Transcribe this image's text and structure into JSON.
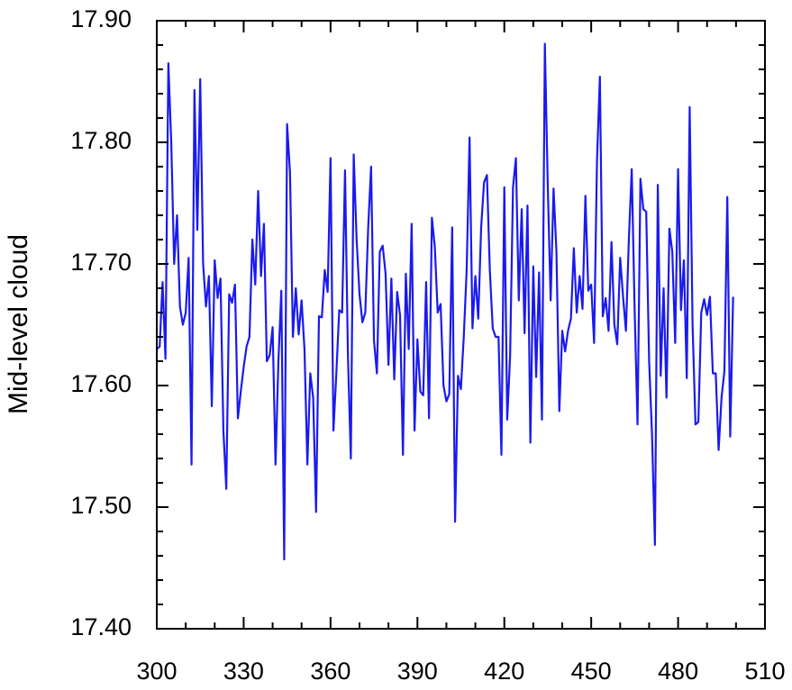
{
  "chart_data": {
    "type": "line",
    "y_label": "Mid-level cloud",
    "x": [
      300,
      301,
      302,
      303,
      304,
      305,
      306,
      307,
      308,
      309,
      310,
      311,
      312,
      313,
      314,
      315,
      316,
      317,
      318,
      319,
      320,
      321,
      322,
      323,
      324,
      325,
      326,
      327,
      328,
      329,
      330,
      331,
      332,
      333,
      334,
      335,
      336,
      337,
      338,
      339,
      340,
      341,
      342,
      343,
      344,
      345,
      346,
      347,
      348,
      349,
      350,
      351,
      352,
      353,
      354,
      355,
      356,
      357,
      358,
      359,
      360,
      361,
      362,
      363,
      364,
      365,
      366,
      367,
      368,
      369,
      370,
      371,
      372,
      373,
      374,
      375,
      376,
      377,
      378,
      379,
      380,
      381,
      382,
      383,
      384,
      385,
      386,
      387,
      388,
      389,
      390,
      391,
      392,
      393,
      394,
      395,
      396,
      397,
      398,
      399,
      400,
      401,
      402,
      403,
      404,
      405,
      406,
      407,
      408,
      409,
      410,
      411,
      412,
      413,
      414,
      415,
      416,
      417,
      418,
      419,
      420,
      421,
      422,
      423,
      424,
      425,
      426,
      427,
      428,
      429,
      430,
      431,
      432,
      433,
      434,
      435,
      436,
      437,
      438,
      439,
      440,
      441,
      442,
      443,
      444,
      445,
      446,
      447,
      448,
      449,
      450,
      451,
      452,
      453,
      454,
      455,
      456,
      457,
      458,
      459,
      460,
      461,
      462,
      463,
      464,
      465,
      466,
      467,
      468,
      469,
      470,
      471,
      472,
      473,
      474,
      475,
      476,
      477,
      478,
      479,
      480,
      481,
      482,
      483,
      484,
      485,
      486,
      487,
      488,
      489,
      490,
      491,
      492,
      493,
      494,
      495,
      496,
      497,
      498,
      499
    ],
    "series": [
      {
        "color": "#1a1aee",
        "values": [
          17.63,
          17.632,
          17.685,
          17.622,
          17.865,
          17.8,
          17.7,
          17.74,
          17.665,
          17.65,
          17.66,
          17.705,
          17.535,
          17.843,
          17.728,
          17.852,
          17.7,
          17.665,
          17.69,
          17.583,
          17.703,
          17.672,
          17.688,
          17.563,
          17.515,
          17.675,
          17.668,
          17.683,
          17.573,
          17.595,
          17.615,
          17.632,
          17.64,
          17.72,
          17.683,
          17.76,
          17.69,
          17.733,
          17.62,
          17.625,
          17.648,
          17.535,
          17.62,
          17.678,
          17.457,
          17.815,
          17.775,
          17.64,
          17.68,
          17.642,
          17.67,
          17.63,
          17.535,
          17.61,
          17.59,
          17.496,
          17.657,
          17.656,
          17.695,
          17.677,
          17.787,
          17.563,
          17.61,
          17.662,
          17.66,
          17.777,
          17.625,
          17.54,
          17.79,
          17.72,
          17.675,
          17.652,
          17.66,
          17.73,
          17.78,
          17.637,
          17.61,
          17.71,
          17.715,
          17.692,
          17.617,
          17.688,
          17.605,
          17.677,
          17.658,
          17.543,
          17.692,
          17.63,
          17.733,
          17.563,
          17.638,
          17.595,
          17.592,
          17.685,
          17.573,
          17.738,
          17.714,
          17.66,
          17.667,
          17.6,
          17.587,
          17.593,
          17.73,
          17.488,
          17.608,
          17.597,
          17.64,
          17.695,
          17.804,
          17.647,
          17.69,
          17.655,
          17.73,
          17.767,
          17.773,
          17.695,
          17.647,
          17.64,
          17.64,
          17.543,
          17.763,
          17.572,
          17.624,
          17.763,
          17.787,
          17.67,
          17.745,
          17.643,
          17.748,
          17.553,
          17.698,
          17.607,
          17.693,
          17.572,
          17.881,
          17.765,
          17.67,
          17.762,
          17.71,
          17.579,
          17.645,
          17.628,
          17.645,
          17.655,
          17.713,
          17.66,
          17.69,
          17.663,
          17.756,
          17.678,
          17.683,
          17.635,
          17.785,
          17.854,
          17.657,
          17.672,
          17.645,
          17.718,
          17.65,
          17.634,
          17.705,
          17.673,
          17.645,
          17.72,
          17.778,
          17.662,
          17.568,
          17.77,
          17.745,
          17.743,
          17.62,
          17.56,
          17.469,
          17.765,
          17.608,
          17.68,
          17.59,
          17.729,
          17.71,
          17.635,
          17.778,
          17.662,
          17.703,
          17.606,
          17.829,
          17.65,
          17.568,
          17.57,
          17.66,
          17.671,
          17.658,
          17.673,
          17.61,
          17.61,
          17.547,
          17.59,
          17.612,
          17.755,
          17.558,
          17.673
        ]
      }
    ],
    "xlim": [
      300,
      510
    ],
    "xticks": [
      300,
      330,
      360,
      390,
      420,
      450,
      480,
      510
    ],
    "xminorticks": [
      310,
      320,
      340,
      350,
      370,
      380,
      400,
      410,
      430,
      440,
      460,
      470,
      490,
      500
    ],
    "ylim": [
      17.4,
      17.9
    ],
    "yticks": [
      {
        "value": 17.4,
        "label": "17.40"
      },
      {
        "value": 17.5,
        "label": "17.50"
      },
      {
        "value": 17.6,
        "label": "17.60"
      },
      {
        "value": 17.7,
        "label": "17.70"
      },
      {
        "value": 17.8,
        "label": "17.80"
      },
      {
        "value": 17.9,
        "label": "17.90"
      }
    ],
    "yminorticks": [
      17.42,
      17.44,
      17.46,
      17.48,
      17.52,
      17.54,
      17.56,
      17.58,
      17.62,
      17.64,
      17.66,
      17.68,
      17.72,
      17.74,
      17.76,
      17.78,
      17.82,
      17.84,
      17.86,
      17.88
    ],
    "grid": false
  }
}
